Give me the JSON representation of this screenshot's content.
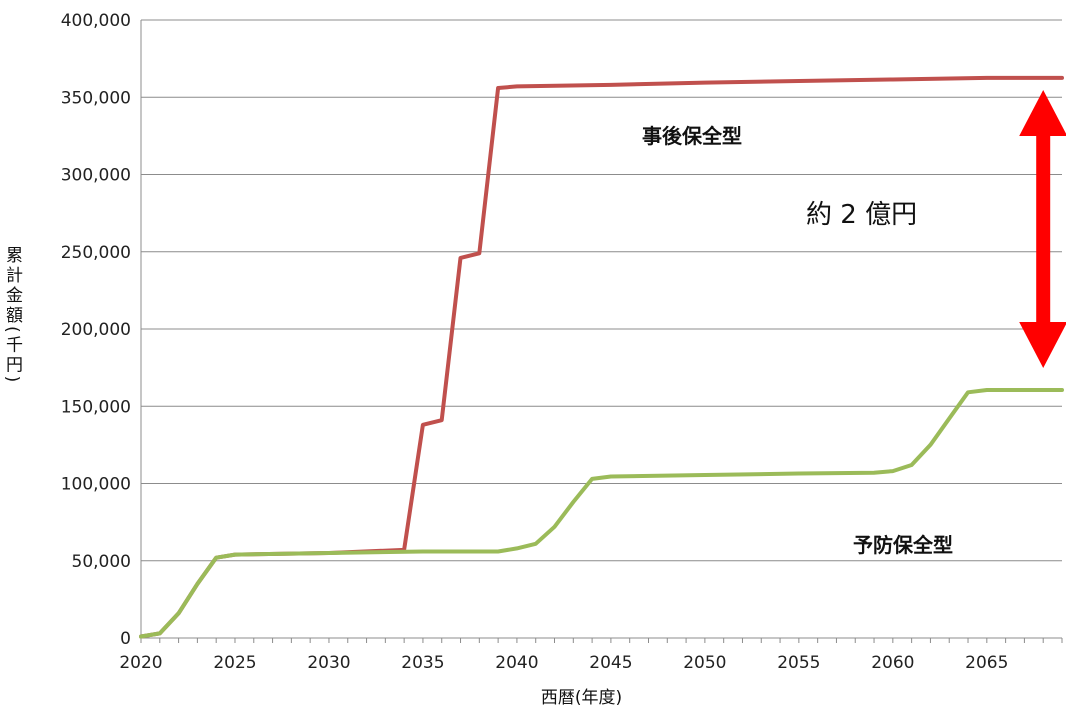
{
  "chart_data": {
    "type": "line",
    "title": "",
    "xlabel": "西暦(年度)",
    "ylabel": "累計金額(千円)",
    "xlim": [
      2020,
      2069
    ],
    "ylim": [
      0,
      400000
    ],
    "x_ticks": [
      2020,
      2025,
      2030,
      2035,
      2040,
      2045,
      2050,
      2055,
      2060,
      2065
    ],
    "y_ticks": [
      0,
      50000,
      100000,
      150000,
      200000,
      250000,
      300000,
      350000,
      400000
    ],
    "y_tick_labels": [
      "0",
      "50,000",
      "100,000",
      "150,000",
      "200,000",
      "250,000",
      "300,000",
      "350,000",
      "400,000"
    ],
    "grid": "horizontal",
    "legend": "none",
    "series": [
      {
        "name": "事後保全型",
        "color": "#c0504d",
        "x": [
          2020,
          2021,
          2022,
          2023,
          2024,
          2025,
          2030,
          2034,
          2035,
          2036,
          2037,
          2038,
          2039,
          2040,
          2045,
          2050,
          2055,
          2060,
          2065,
          2069
        ],
        "y": [
          1000,
          3000,
          16000,
          35000,
          52000,
          54000,
          55000,
          57000,
          138000,
          141000,
          246000,
          249000,
          356000,
          357000,
          358000,
          359500,
          360500,
          361500,
          362500,
          362500
        ]
      },
      {
        "name": "予防保全型",
        "color": "#9bbb59",
        "x": [
          2020,
          2021,
          2022,
          2023,
          2024,
          2025,
          2030,
          2035,
          2039,
          2040,
          2041,
          2042,
          2043,
          2044,
          2045,
          2050,
          2055,
          2059,
          2060,
          2061,
          2062,
          2063,
          2064,
          2065,
          2069
        ],
        "y": [
          1000,
          3000,
          16000,
          35000,
          52000,
          54000,
          55000,
          56000,
          56000,
          58000,
          61000,
          72000,
          88000,
          103000,
          104500,
          105500,
          106500,
          107000,
          108000,
          112000,
          125000,
          142000,
          159000,
          160500,
          160500
        ]
      }
    ],
    "annotations": {
      "series_label_post": "事後保全型",
      "series_label_pre": "予防保全型",
      "difference_label": "約 2 億円",
      "arrow_color": "#ff0000",
      "arrow_from": 160500,
      "arrow_to": 362500,
      "arrow_x": 2068
    }
  }
}
